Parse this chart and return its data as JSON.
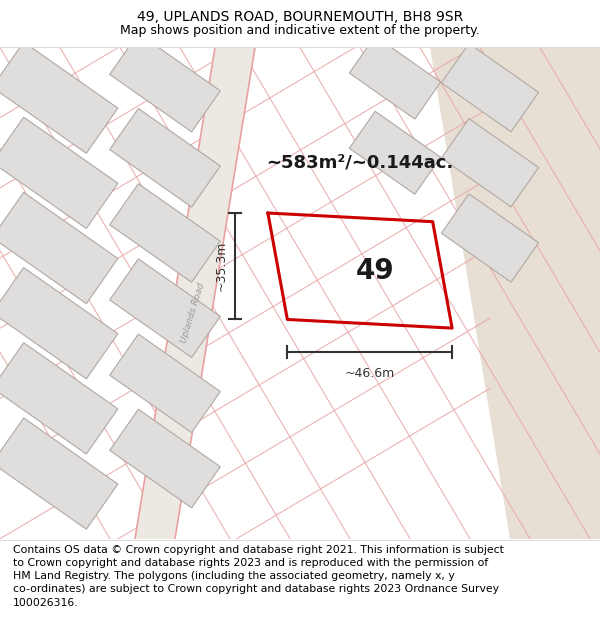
{
  "title": "49, UPLANDS ROAD, BOURNEMOUTH, BH8 9SR",
  "subtitle": "Map shows position and indicative extent of the property.",
  "footer": "Contains OS data © Crown copyright and database right 2021. This information is subject\nto Crown copyright and database rights 2023 and is reproduced with the permission of\nHM Land Registry. The polygons (including the associated geometry, namely x, y\nco-ordinates) are subject to Crown copyright and database rights 2023 Ordnance Survey\n100026316.",
  "area_label": "~583m²/~0.144ac.",
  "property_number": "49",
  "dim_width": "~46.6m",
  "dim_height": "~35.3m",
  "road_label": "Uplands Road",
  "bg_map_color": "#f2eeea",
  "block_fill": "#e0dedd",
  "block_stroke": "#b0a8a4",
  "street_line_color": "#e8a0a0",
  "highlight_color": "#cc0000",
  "dim_color": "#333333",
  "title_fontsize": 10,
  "subtitle_fontsize": 9,
  "footer_fontsize": 7.8,
  "road_label_color": "#999999",
  "sand_color": "#e8dfd4"
}
